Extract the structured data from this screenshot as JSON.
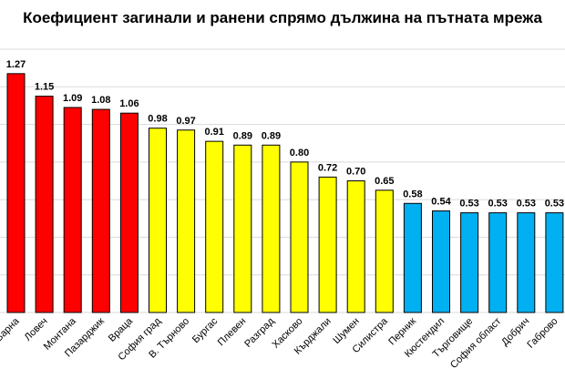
{
  "chart_data": {
    "type": "bar",
    "title": "Коефициент загинали и ранени спрямо дължина на пътната мрежа",
    "xlabel": "",
    "ylabel": "",
    "ylim": [
      0,
      1.4
    ],
    "grid": true,
    "categories": [
      "Варна",
      "Ловеч",
      "Монтана",
      "Пазарджик",
      "Враца",
      "София град",
      "В. Търново",
      "Бургас",
      "Плевен",
      "Разград",
      "Хасково",
      "Кърджали",
      "Шумен",
      "Силистра",
      "Перник",
      "Кюстендил",
      "Търговище",
      "София област",
      "Добрич",
      "Габрово"
    ],
    "values": [
      1.27,
      1.15,
      1.09,
      1.08,
      1.06,
      0.98,
      0.97,
      0.91,
      0.89,
      0.89,
      0.8,
      0.72,
      0.7,
      0.65,
      0.58,
      0.54,
      0.53,
      0.53,
      0.53,
      0.53
    ],
    "value_labels": [
      "1.27",
      "1.15",
      "1.09",
      "1.08",
      "1.06",
      "0.98",
      "0.97",
      "0.91",
      "0.89",
      "0.89",
      "0.80",
      "0.72",
      "0.70",
      "0.65",
      "0.58",
      "0.54",
      "0.53",
      "0.53",
      "0.53",
      "0.53"
    ],
    "bar_colors": [
      "#FF0000",
      "#FF0000",
      "#FF0000",
      "#FF0000",
      "#FF0000",
      "#FFFF00",
      "#FFFF00",
      "#FFFF00",
      "#FFFF00",
      "#FFFF00",
      "#FFFF00",
      "#FFFF00",
      "#FFFF00",
      "#FFFF00",
      "#00B0F0",
      "#00B0F0",
      "#00B0F0",
      "#00B0F0",
      "#00B0F0",
      "#00B0F0"
    ]
  }
}
